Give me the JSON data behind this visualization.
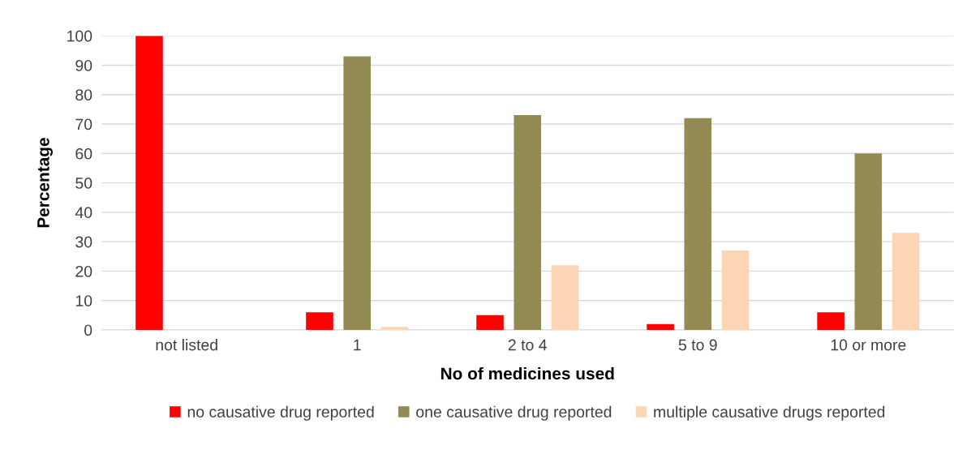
{
  "chart_data": {
    "type": "bar",
    "xlabel": "No of medicines used",
    "ylabel": "Percentage",
    "categories": [
      "not listed",
      "1",
      "2 to 4",
      "5 to 9",
      "10 or more"
    ],
    "series": [
      {
        "name": "no causative drug reported",
        "color": "#ff0000",
        "values": [
          100,
          6,
          5,
          2,
          6
        ]
      },
      {
        "name": "one causative drug reported",
        "color": "#948a54",
        "values": [
          0,
          93,
          73,
          72,
          60
        ]
      },
      {
        "name": "multiple causative drugs reported",
        "color": "#fcd5b5",
        "values": [
          0,
          1,
          22,
          27,
          33
        ]
      }
    ],
    "ylim": [
      0,
      100
    ],
    "yticks": [
      0,
      10,
      20,
      30,
      40,
      50,
      60,
      70,
      80,
      90,
      100
    ],
    "grid": "y",
    "legend": "bottom"
  }
}
